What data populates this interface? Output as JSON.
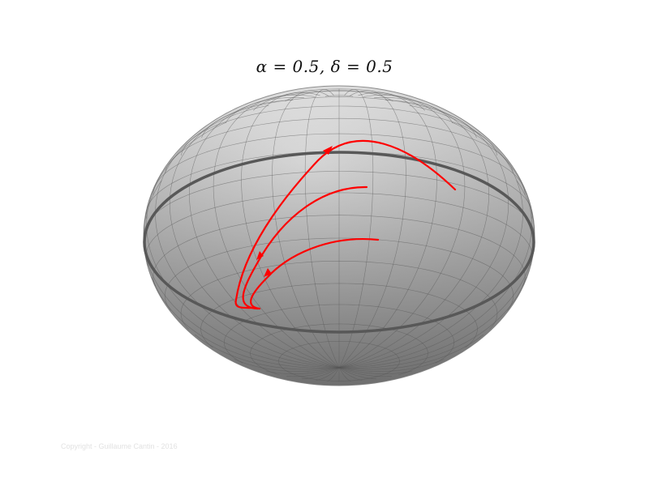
{
  "title": "α = 0.5, δ = 0.5",
  "copyright": "Copyright - Guillaume Cantin - 2016",
  "colors": {
    "sphere_light": "#e4e4e4",
    "sphere_dark": "#7a7a7a",
    "grid": "#5a5a5a",
    "equator": "#555555",
    "trajectory": "#ff0000"
  },
  "trajectories": [
    {
      "name": "trajectory-1",
      "arrows": 1
    },
    {
      "name": "trajectory-2",
      "arrows": 1
    },
    {
      "name": "trajectory-3",
      "arrows": 1
    }
  ]
}
